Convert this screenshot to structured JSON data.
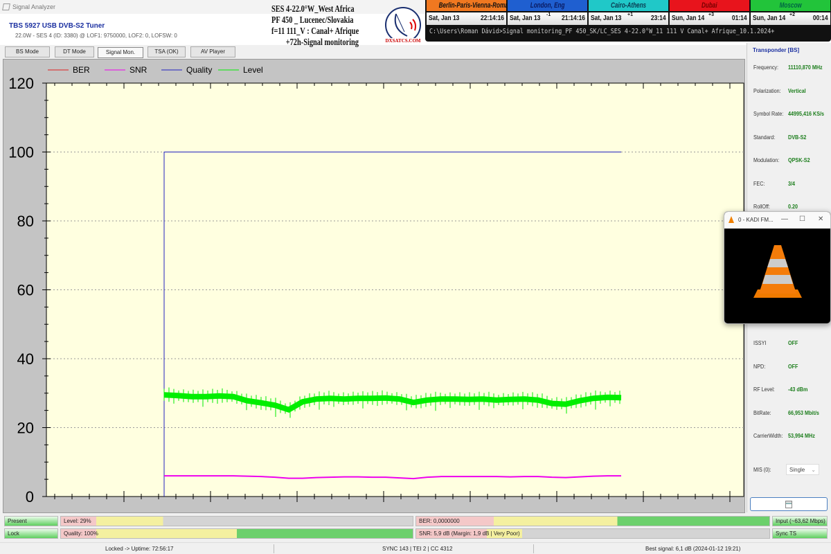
{
  "window": {
    "title": "Signal Analyzer"
  },
  "header": {
    "tuner": "TBS 5927 USB DVB-S2 Tuner",
    "tuner_info": "22.0W - SES 4 (ID: 3380) @ LOF1: 9750000, LOF2: 0, LOFSW: 0"
  },
  "overlay": {
    "lines": [
      "SES 4-22.0°W_West Africa",
      "PF 450 _ Lucenec/Slovakia",
      "f=11 111_V : Canal+ Afrique",
      "+72h-Signal monitoring"
    ],
    "logo": "DXSATCS.COM"
  },
  "clocks": [
    {
      "city": "Berlin-Paris-Vienna-Roma",
      "date": "Sat, Jan 13",
      "time": "22:14:16",
      "offset": "",
      "color": "#f07820",
      "text": "#111"
    },
    {
      "city": "London, Eng",
      "date": "Sat, Jan 13",
      "time": "21:14:16",
      "offset": "-1",
      "color": "#1f5fd0",
      "text": "#0a1a60"
    },
    {
      "city": "Cairo-Athens",
      "date": "Sat, Jan 13",
      "time": "23:14",
      "offset": "+1",
      "color": "#20c8c8",
      "text": "#0a3a50"
    },
    {
      "city": "Dubai",
      "date": "Sun, Jan 14",
      "time": "01:14",
      "offset": "+3",
      "color": "#e8141c",
      "text": "#700"
    },
    {
      "city": "Moscow",
      "date": "Sun, Jan 14",
      "time": "00:14",
      "offset": "+2",
      "color": "#22c43a",
      "text": "#064"
    }
  ],
  "command_line": "C:\\Users\\Roman Dávid>Signal monitoring_PF 450_SK/LC_SES 4-22.0°W_11 111 V Canal+ Afrique_10.1.2024+",
  "tabs": [
    {
      "label": "BS Mode"
    },
    {
      "label": "DT Mode"
    },
    {
      "label": "Signal Mon.",
      "active": true
    },
    {
      "label": "TSA (OK)"
    },
    {
      "label": "AV Player"
    }
  ],
  "chart_data": {
    "type": "line",
    "ylim": [
      0,
      120
    ],
    "yticks": [
      "0",
      "20",
      "40",
      "60",
      "80",
      "100",
      "120"
    ],
    "grid": "horizontal dotted",
    "legend_placement": "top-left",
    "series": [
      {
        "name": "BER",
        "color": "#e02020",
        "values": [
          10,
          0
        ]
      },
      {
        "name": "SNR",
        "color": "#ee00ee",
        "values": [
          6.0,
          6.0,
          6.0,
          6.0,
          6.0,
          6.0,
          5.9,
          5.8,
          5.6,
          5.3,
          5.3,
          5.5,
          5.6,
          5.7,
          5.7,
          5.6,
          5.6,
          5.4,
          5.2,
          5.6,
          5.8,
          5.8,
          5.8,
          5.8,
          5.8,
          5.7,
          5.8,
          5.8,
          5.6,
          5.5,
          5.7,
          5.9,
          6.0,
          6.0
        ]
      },
      {
        "name": "Quality",
        "color": "#2020c0",
        "values": [
          0,
          100,
          100
        ]
      },
      {
        "name": "Level",
        "color": "#00ee00",
        "values": [
          29.5,
          29.3,
          29.0,
          29.0,
          29.2,
          29.0,
          27.8,
          27.2,
          26.5,
          25.2,
          27.5,
          28.3,
          28.5,
          28.3,
          28.5,
          28.5,
          28.6,
          28.3,
          27.3,
          28.0,
          28.3,
          28.3,
          28.2,
          28.3,
          28.0,
          28.2,
          28.3,
          28.0,
          27.0,
          26.8,
          27.8,
          28.5,
          28.8,
          28.7
        ]
      }
    ]
  },
  "transponder": {
    "title": "Transponder [BS]",
    "rows": [
      {
        "label": "Frequency:",
        "value": "11110,870 MHz"
      },
      {
        "label": "Polarization:",
        "value": "Vertical"
      },
      {
        "label": "Symbol Rate:",
        "value": "44995,416 KS/s"
      },
      {
        "label": "Standard:",
        "value": "DVB-S2"
      },
      {
        "label": "Modulation:",
        "value": "QPSK-S2"
      },
      {
        "label": "FEC:",
        "value": "3/4"
      },
      {
        "label": "RollOff:",
        "value": "0.20"
      }
    ],
    "rows2": [
      {
        "label": "ISSYI",
        "value": "OFF"
      },
      {
        "label": "NPD:",
        "value": "OFF"
      },
      {
        "label": "RF Level:",
        "value": "-43 dBm"
      },
      {
        "label": "BitRate:",
        "value": "66,953 Mbit/s"
      },
      {
        "label": "CarrierWidth:",
        "value": "53,994 MHz"
      }
    ],
    "mis_label": "MIS (0):",
    "mis_value": "Single"
  },
  "vlc": {
    "title": "0 - KADI FM..."
  },
  "bars": {
    "present": "Present",
    "lock": "Lock",
    "level": {
      "label": "Level: 29%",
      "percent": 29
    },
    "quality": {
      "label": "Quality: 100%",
      "percent": 100
    },
    "ber": {
      "label": "BER: 0,0000000",
      "percent": 100
    },
    "snr": {
      "label": "SNR: 5,9 dB (Margin: 1,9 dB | Very Poor)",
      "percent": 25
    },
    "input": "Input (~63,62 Mbps)",
    "sync": "Sync TS"
  },
  "status": {
    "uptime": "Locked -> Uptime: 72:56:17",
    "sync": "SYNC 143 | TEI 2 | CC 4312",
    "best": "Best signal: 6,1 dB (2024-01-12 19:21)"
  }
}
